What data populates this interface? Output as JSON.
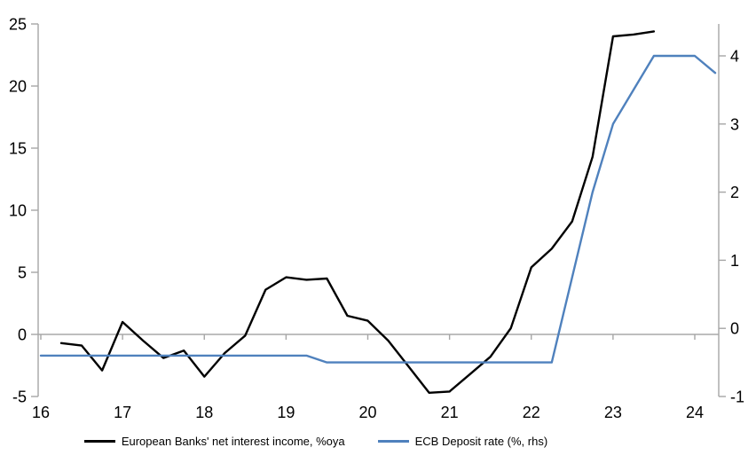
{
  "chart_data": {
    "type": "line",
    "title": "",
    "grid": "zero-line-only",
    "legend_position": "bottom-center",
    "x_axis": {
      "tick_values": [
        16,
        17,
        18,
        19,
        20,
        21,
        22,
        23,
        24
      ],
      "tick_labels": [
        "16",
        "17",
        "18",
        "19",
        "20",
        "21",
        "22",
        "23",
        "24"
      ],
      "range": [
        16,
        24.3
      ]
    },
    "left_y_axis": {
      "tick_values": [
        -5,
        0,
        5,
        10,
        15,
        20,
        25
      ],
      "tick_labels": [
        "-5",
        "0",
        "5",
        "10",
        "15",
        "20",
        "25"
      ],
      "range": [
        -5,
        25
      ]
    },
    "right_y_axis": {
      "tick_values": [
        -1,
        0,
        1,
        2,
        3,
        4
      ],
      "tick_labels": [
        "-1",
        "0",
        "1",
        "2",
        "3",
        "4"
      ],
      "range": [
        -1,
        4.47
      ]
    },
    "series": [
      {
        "name": "European Banks' net interest income, %oya",
        "axis": "left",
        "color": "#000000",
        "x": [
          16.25,
          16.5,
          16.75,
          17.0,
          17.25,
          17.5,
          17.75,
          18.0,
          18.25,
          18.5,
          18.75,
          19.0,
          19.25,
          19.5,
          19.75,
          20.0,
          20.25,
          20.5,
          20.75,
          21.0,
          21.25,
          21.5,
          21.75,
          22.0,
          22.25,
          22.5,
          22.75,
          23.0,
          23.25,
          23.5
        ],
        "values": [
          -0.7,
          -0.9,
          -2.9,
          1.0,
          -0.5,
          -1.9,
          -1.3,
          -3.4,
          -1.5,
          -0.1,
          3.6,
          4.6,
          4.4,
          4.5,
          1.5,
          1.1,
          -0.5,
          -2.6,
          -4.7,
          -4.6,
          -3.2,
          -1.8,
          0.5,
          5.4,
          6.9,
          9.1,
          14.3,
          24.0,
          24.15,
          24.4
        ]
      },
      {
        "name": "ECB Deposit rate (%, rhs)",
        "axis": "right",
        "color": "#4f81bd",
        "x": [
          16.0,
          16.25,
          16.5,
          16.75,
          17.0,
          17.25,
          17.5,
          17.75,
          18.0,
          18.25,
          18.5,
          18.75,
          19.0,
          19.25,
          19.5,
          19.75,
          20.0,
          20.25,
          20.5,
          20.75,
          21.0,
          21.25,
          21.5,
          21.75,
          22.0,
          22.25,
          22.5,
          22.75,
          23.0,
          23.25,
          23.5,
          23.75,
          24.0,
          24.25
        ],
        "values": [
          -0.4,
          -0.4,
          -0.4,
          -0.4,
          -0.4,
          -0.4,
          -0.4,
          -0.4,
          -0.4,
          -0.4,
          -0.4,
          -0.4,
          -0.4,
          -0.4,
          -0.5,
          -0.5,
          -0.5,
          -0.5,
          -0.5,
          -0.5,
          -0.5,
          -0.5,
          -0.5,
          -0.5,
          -0.5,
          -0.5,
          0.75,
          2.0,
          3.0,
          3.5,
          4.0,
          4.0,
          4.0,
          3.75
        ]
      }
    ]
  },
  "colors": {
    "background": "#ffffff",
    "axis_line": "#a6a6a6",
    "zero_line": "#a9a9a9",
    "tick_text": "#000000",
    "black_series": "#000000",
    "blue_series": "#4f81bd"
  }
}
